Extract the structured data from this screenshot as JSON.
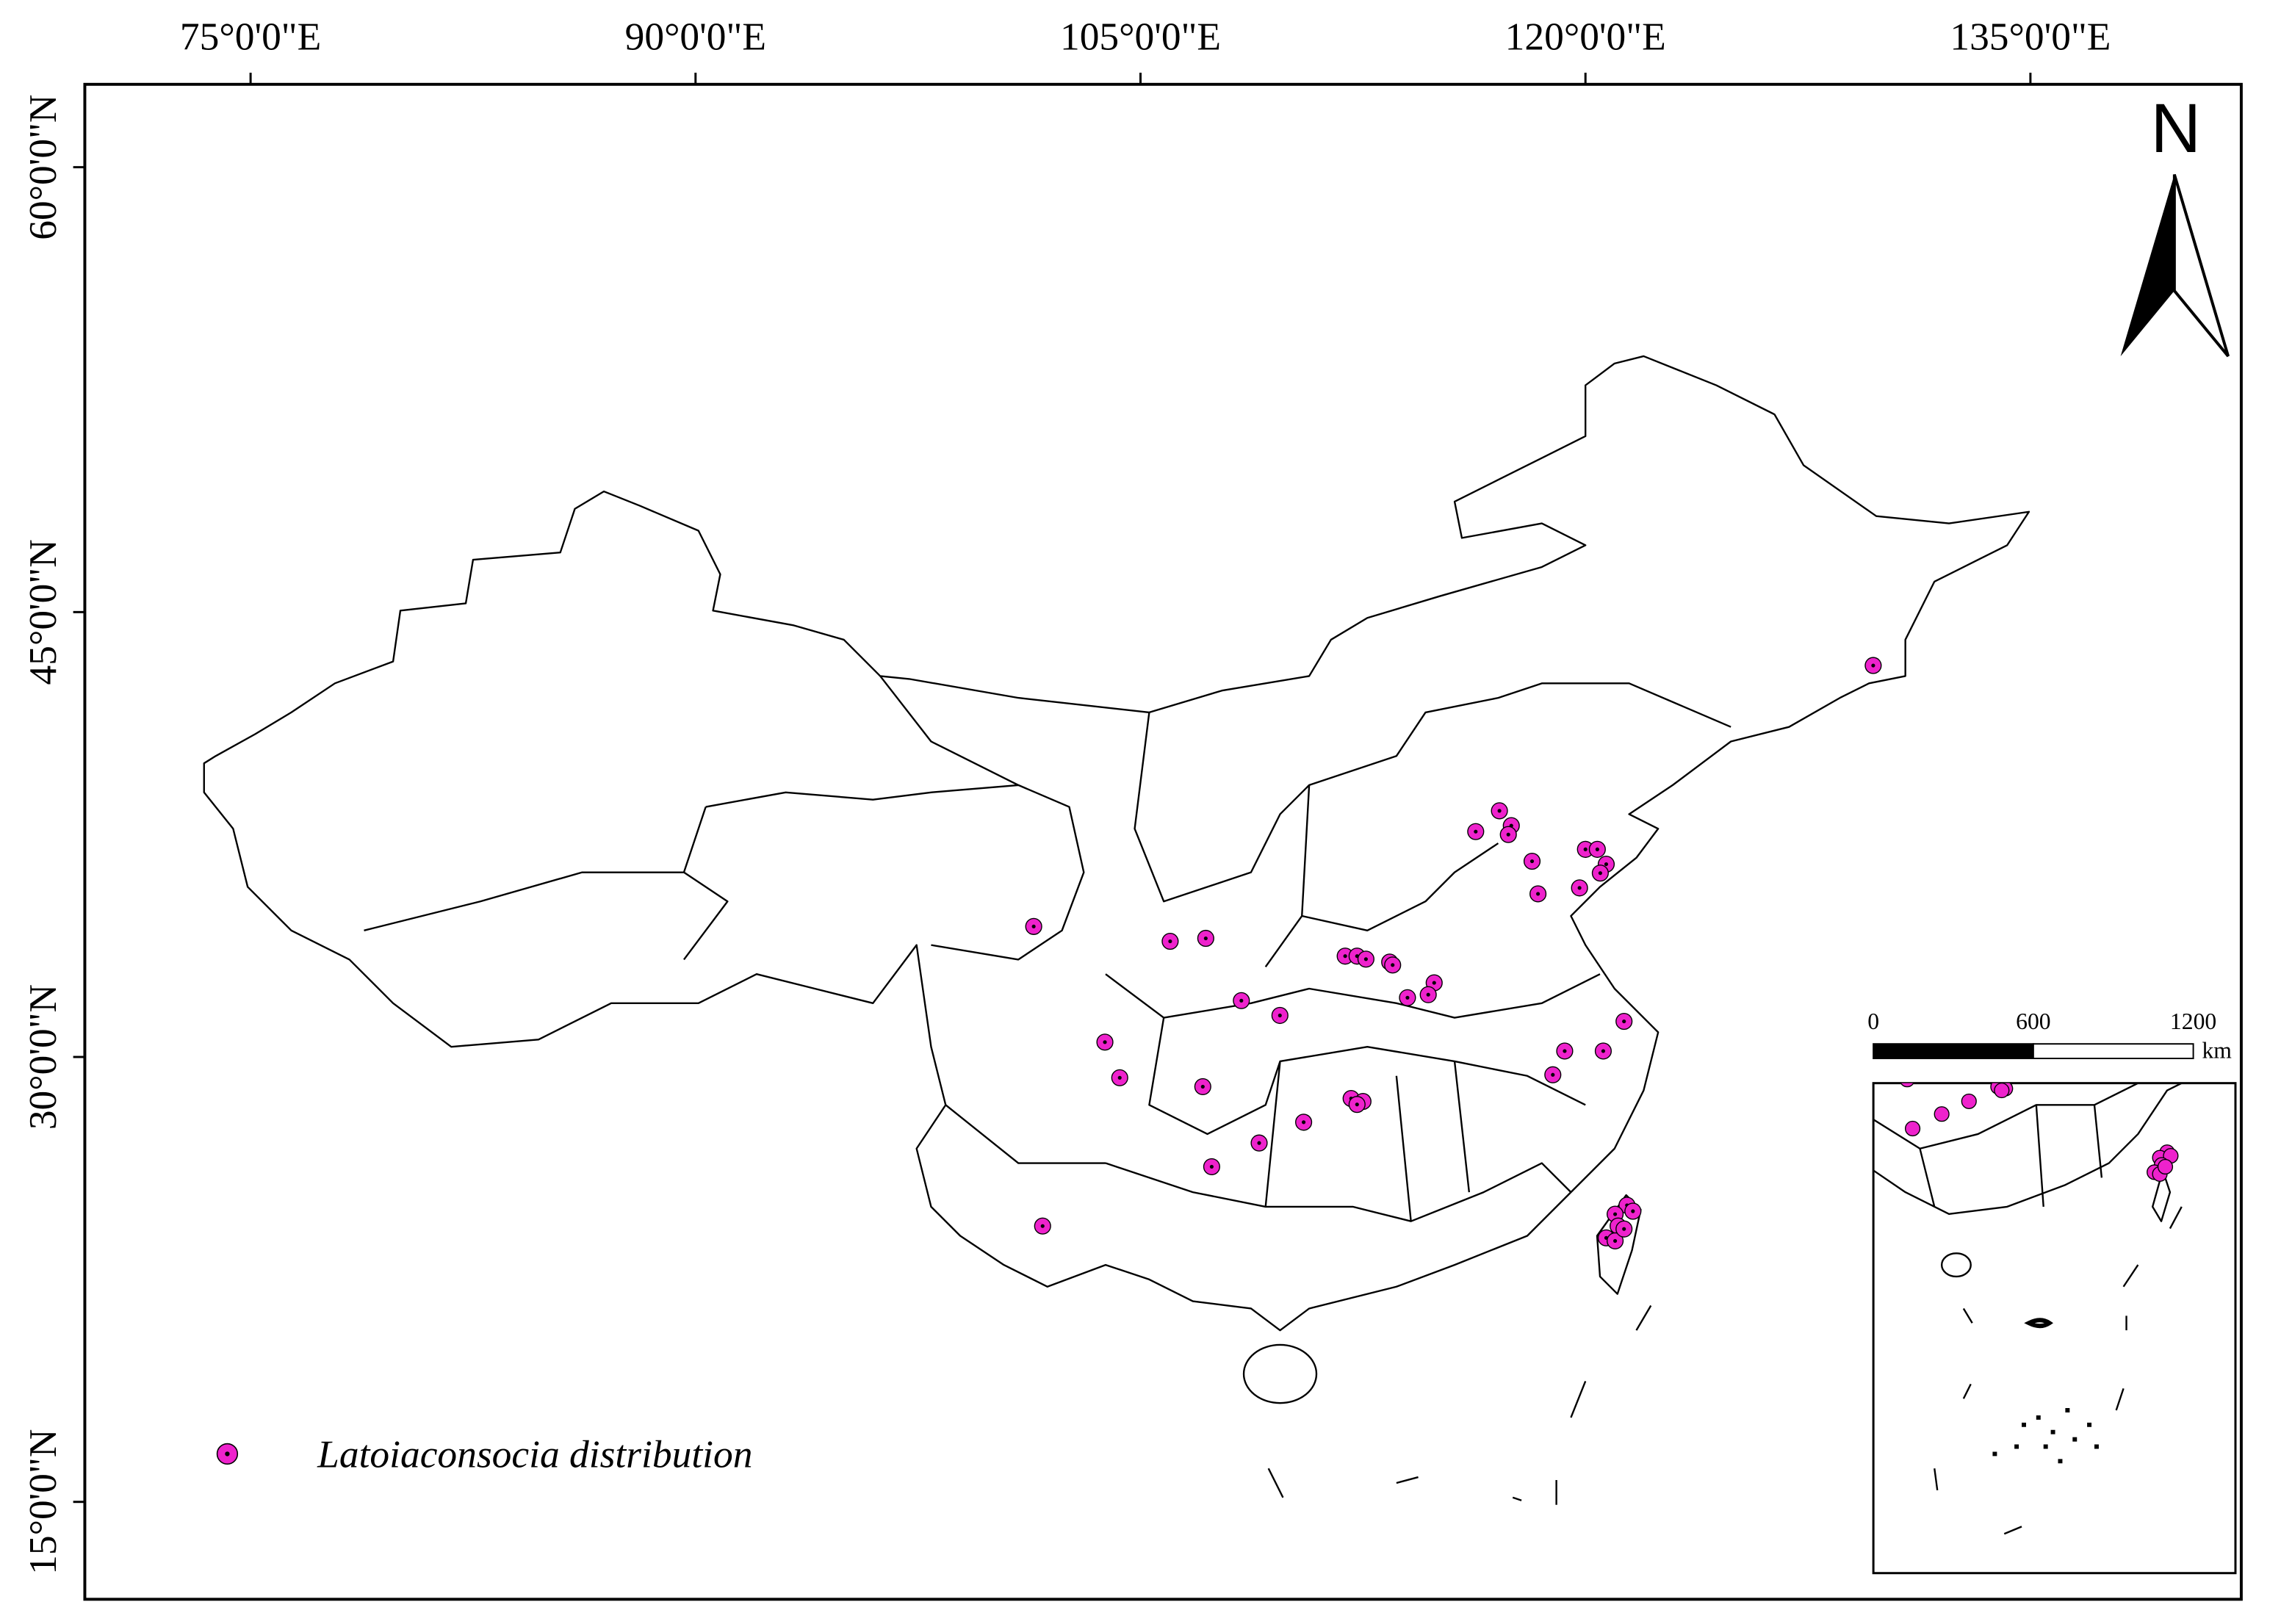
{
  "map": {
    "north": "N",
    "lon_ticks": [
      {
        "value": 75,
        "label": "75°0'0\"E"
      },
      {
        "value": 90,
        "label": "90°0'0\"E"
      },
      {
        "value": 105,
        "label": "105°0'0\"E"
      },
      {
        "value": 120,
        "label": "120°0'0\"E"
      },
      {
        "value": 135,
        "label": "135°0'0\"E"
      }
    ],
    "lat_ticks": [
      {
        "value": 60,
        "label": "60°0'0\"N"
      },
      {
        "value": 45,
        "label": "45°0'0\"N"
      },
      {
        "value": 30,
        "label": "30°0'0\"N"
      },
      {
        "value": 15,
        "label": "15°0'0\"N"
      }
    ],
    "legend": "Latoiaconsocia distribution",
    "point_color": "#ee22cc",
    "scale_bar": {
      "ticks": [
        0,
        600,
        1200
      ],
      "unit": "km"
    },
    "points": [
      {
        "lon": 129.7,
        "lat": 43.2
      },
      {
        "lon": 117.1,
        "lat": 38.3
      },
      {
        "lon": 116.3,
        "lat": 37.6
      },
      {
        "lon": 117.5,
        "lat": 37.8
      },
      {
        "lon": 117.4,
        "lat": 37.5
      },
      {
        "lon": 118.2,
        "lat": 36.6
      },
      {
        "lon": 120.0,
        "lat": 37.0
      },
      {
        "lon": 120.4,
        "lat": 37.0
      },
      {
        "lon": 120.7,
        "lat": 36.5
      },
      {
        "lon": 120.5,
        "lat": 36.2
      },
      {
        "lon": 119.8,
        "lat": 35.7
      },
      {
        "lon": 118.4,
        "lat": 35.5
      },
      {
        "lon": 101.4,
        "lat": 34.4
      },
      {
        "lon": 106.0,
        "lat": 33.9
      },
      {
        "lon": 107.2,
        "lat": 34.0
      },
      {
        "lon": 111.9,
        "lat": 33.4
      },
      {
        "lon": 112.3,
        "lat": 33.4
      },
      {
        "lon": 112.6,
        "lat": 33.3
      },
      {
        "lon": 113.4,
        "lat": 33.2
      },
      {
        "lon": 113.5,
        "lat": 33.1
      },
      {
        "lon": 114.9,
        "lat": 32.5
      },
      {
        "lon": 114.7,
        "lat": 32.1
      },
      {
        "lon": 114.0,
        "lat": 32.0
      },
      {
        "lon": 108.4,
        "lat": 31.9
      },
      {
        "lon": 109.7,
        "lat": 31.4
      },
      {
        "lon": 121.3,
        "lat": 31.2
      },
      {
        "lon": 103.8,
        "lat": 30.5
      },
      {
        "lon": 119.3,
        "lat": 30.2
      },
      {
        "lon": 120.6,
        "lat": 30.2
      },
      {
        "lon": 118.9,
        "lat": 29.4
      },
      {
        "lon": 104.3,
        "lat": 29.3
      },
      {
        "lon": 107.1,
        "lat": 29.0
      },
      {
        "lon": 112.1,
        "lat": 28.6
      },
      {
        "lon": 112.5,
        "lat": 28.5
      },
      {
        "lon": 112.3,
        "lat": 28.4
      },
      {
        "lon": 110.5,
        "lat": 27.8
      },
      {
        "lon": 109.0,
        "lat": 27.1
      },
      {
        "lon": 107.4,
        "lat": 26.3
      },
      {
        "lon": 101.7,
        "lat": 24.3
      },
      {
        "lon": 121.4,
        "lat": 25.0
      },
      {
        "lon": 121.0,
        "lat": 24.7
      },
      {
        "lon": 121.6,
        "lat": 24.8
      },
      {
        "lon": 121.1,
        "lat": 24.3
      },
      {
        "lon": 120.7,
        "lat": 23.9
      },
      {
        "lon": 121.0,
        "lat": 23.8
      },
      {
        "lon": 121.3,
        "lat": 24.2
      }
    ]
  }
}
